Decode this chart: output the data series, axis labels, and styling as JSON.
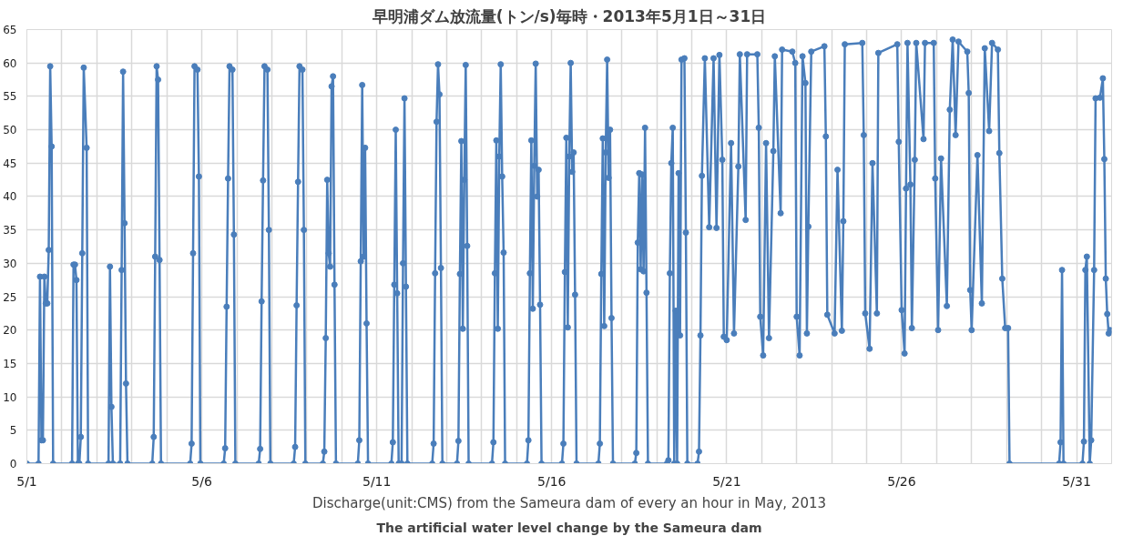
{
  "chart_data": {
    "type": "line",
    "title": "早明浦ダム放流量(トン/s)毎時・2013年5月1日～31日",
    "xlabel": "Discharge(unit:CMS) from the Sameura dam of every an hour in May, 2013",
    "annotations": [
      "The artificial water level change by the Sameura dam"
    ],
    "x": [
      "2013-05-01T00:00",
      "2013-05-01T08:00",
      "2013-05-01T09:00",
      "2013-05-01T10:00",
      "2013-05-01T11:00",
      "2013-05-01T12:00",
      "2013-05-01T13:00",
      "2013-05-01T14:00",
      "2013-05-01T15:00",
      "2013-05-01T16:00",
      "2013-05-01T17:00",
      "2013-05-01T18:00",
      "2013-05-02T07:00",
      "2013-05-02T08:00",
      "2013-05-02T09:00",
      "2013-05-02T10:00",
      "2013-05-02T11:00",
      "2013-05-02T12:00",
      "2013-05-02T13:00",
      "2013-05-02T14:00",
      "2013-05-02T15:00",
      "2013-05-02T17:00",
      "2013-05-02T18:00",
      "2013-05-03T08:00",
      "2013-05-03T09:00",
      "2013-05-03T10:00",
      "2013-05-03T11:00",
      "2013-05-03T16:00",
      "2013-05-03T17:00",
      "2013-05-03T18:00",
      "2013-05-03T19:00",
      "2013-05-03T20:00",
      "2013-05-03T21:00",
      "2013-05-04T14:00",
      "2013-05-04T15:00",
      "2013-05-04T16:00",
      "2013-05-04T17:00",
      "2013-05-04T18:00",
      "2013-05-04T19:00",
      "2013-05-04T20:00",
      "2013-05-05T16:00",
      "2013-05-05T17:00",
      "2013-05-05T18:00",
      "2013-05-05T19:00",
      "2013-05-05T21:00",
      "2013-05-05T22:00",
      "2013-05-05T23:00",
      "2013-05-06T15:00",
      "2013-05-06T16:00",
      "2013-05-06T17:00",
      "2013-05-06T18:00",
      "2013-05-06T19:00",
      "2013-05-06T21:00",
      "2013-05-06T22:00",
      "2013-05-06T23:00",
      "2013-05-07T15:00",
      "2013-05-07T16:00",
      "2013-05-07T17:00",
      "2013-05-07T18:00",
      "2013-05-07T19:00",
      "2013-05-07T21:00",
      "2013-05-07T22:00",
      "2013-05-07T23:00",
      "2013-05-08T15:00",
      "2013-05-08T16:00",
      "2013-05-08T17:00",
      "2013-05-08T18:00",
      "2013-05-08T19:00",
      "2013-05-08T21:00",
      "2013-05-08T22:00",
      "2013-05-08T23:00",
      "2013-05-09T11:00",
      "2013-05-09T12:00",
      "2013-05-09T13:00",
      "2013-05-09T14:00",
      "2013-05-09T15:00",
      "2013-05-09T16:00",
      "2013-05-09T17:00",
      "2013-05-09T18:00",
      "2013-05-09T19:00",
      "2013-05-09T20:00",
      "2013-05-10T11:00",
      "2013-05-10T12:00",
      "2013-05-10T13:00",
      "2013-05-10T14:00",
      "2013-05-10T15:00",
      "2013-05-10T16:00",
      "2013-05-10T17:00",
      "2013-05-10T18:00",
      "2013-05-11T10:00",
      "2013-05-11T11:00",
      "2013-05-11T12:00",
      "2013-05-11T13:00",
      "2013-05-11T14:00",
      "2013-05-11T15:00",
      "2013-05-11T17:00",
      "2013-05-11T18:00",
      "2013-05-11T19:00",
      "2013-05-11T20:00",
      "2013-05-11T21:00",
      "2013-05-12T14:00",
      "2013-05-12T15:00",
      "2013-05-12T16:00",
      "2013-05-12T17:00",
      "2013-05-12T18:00",
      "2013-05-12T19:00",
      "2013-05-12T20:00",
      "2013-05-12T21:00",
      "2013-05-13T07:00",
      "2013-05-13T08:00",
      "2013-05-13T09:00",
      "2013-05-13T10:00",
      "2013-05-13T11:00",
      "2013-05-13T12:00",
      "2013-05-13T13:00",
      "2013-05-13T14:00",
      "2013-05-13T15:00",
      "2013-05-14T07:00",
      "2013-05-14T08:00",
      "2013-05-14T09:00",
      "2013-05-14T10:00",
      "2013-05-14T11:00",
      "2013-05-14T12:00",
      "2013-05-14T13:00",
      "2013-05-14T14:00",
      "2013-05-14T15:00",
      "2013-05-14T16:00",
      "2013-05-15T07:00",
      "2013-05-15T08:00",
      "2013-05-15T09:00",
      "2013-05-15T10:00",
      "2013-05-15T11:00",
      "2013-05-15T12:00",
      "2013-05-15T13:00",
      "2013-05-15T14:00",
      "2013-05-15T15:00",
      "2013-05-15T16:00",
      "2013-05-15T17:00",
      "2013-05-16T07:00",
      "2013-05-16T08:00",
      "2013-05-16T09:00",
      "2013-05-16T10:00",
      "2013-05-16T11:00",
      "2013-05-16T12:00",
      "2013-05-16T13:00",
      "2013-05-16T14:00",
      "2013-05-16T15:00",
      "2013-05-16T16:00",
      "2013-05-16T17:00",
      "2013-05-17T08:00",
      "2013-05-17T09:00",
      "2013-05-17T10:00",
      "2013-05-17T11:00",
      "2013-05-17T12:00",
      "2013-05-17T13:00",
      "2013-05-17T14:00",
      "2013-05-17T15:00",
      "2013-05-17T16:00",
      "2013-05-17T17:00",
      "2013-05-17T18:00",
      "2013-05-18T09:00",
      "2013-05-18T10:00",
      "2013-05-18T11:00",
      "2013-05-18T12:00",
      "2013-05-18T13:00",
      "2013-05-18T14:00",
      "2013-05-18T15:00",
      "2013-05-18T16:00",
      "2013-05-18T17:00",
      "2013-05-18T18:00",
      "2013-05-19T07:00",
      "2013-05-19T08:00",
      "2013-05-19T09:00",
      "2013-05-19T10:00",
      "2013-05-19T11:00",
      "2013-05-19T12:00",
      "2013-05-19T13:00",
      "2013-05-19T14:00",
      "2013-05-19T15:00",
      "2013-05-19T16:00",
      "2013-05-19T17:00",
      "2013-05-19T19:00",
      "2013-05-19T20:00",
      "2013-05-19T21:00",
      "2013-05-20T04:00",
      "2013-05-20T05:00",
      "2013-05-20T06:00",
      "2013-05-20T07:00",
      "2013-05-20T09:00",
      "2013-05-20T12:00",
      "2013-05-20T15:00",
      "2013-05-20T17:00",
      "2013-05-20T19:00",
      "2013-05-20T21:00",
      "2013-05-20T22:00",
      "2013-05-21T00:00",
      "2013-05-21T03:00",
      "2013-05-21T05:00",
      "2013-05-21T08:00",
      "2013-05-21T09:00",
      "2013-05-21T13:00",
      "2013-05-21T14:00",
      "2013-05-21T21:00",
      "2013-05-21T22:00",
      "2013-05-21T23:00",
      "2013-05-22T01:00",
      "2013-05-22T03:00",
      "2013-05-22T05:00",
      "2013-05-22T08:00",
      "2013-05-22T09:00",
      "2013-05-22T13:00",
      "2013-05-22T14:00",
      "2013-05-22T21:00",
      "2013-05-22T23:00",
      "2013-05-23T00:00",
      "2013-05-23T02:00",
      "2013-05-23T04:00",
      "2013-05-23T06:00",
      "2013-05-23T07:00",
      "2013-05-23T08:00",
      "2013-05-23T10:00",
      "2013-05-23T19:00",
      "2013-05-23T20:00",
      "2013-05-23T21:00",
      "2013-05-24T02:00",
      "2013-05-24T04:00",
      "2013-05-24T07:00",
      "2013-05-24T08:00",
      "2013-05-24T09:00",
      "2013-05-24T21:00",
      "2013-05-24T22:00",
      "2013-05-24T23:00",
      "2013-05-25T02:00",
      "2013-05-25T04:00",
      "2013-05-25T07:00",
      "2013-05-25T08:00",
      "2013-05-25T21:00",
      "2013-05-25T22:00",
      "2013-05-26T00:00",
      "2013-05-26T02:00",
      "2013-05-26T03:00",
      "2013-05-26T04:00",
      "2013-05-26T06:00",
      "2013-05-26T07:00",
      "2013-05-26T09:00",
      "2013-05-26T10:00",
      "2013-05-26T15:00",
      "2013-05-26T16:00",
      "2013-05-26T22:00",
      "2013-05-26T23:00",
      "2013-05-27T01:00",
      "2013-05-27T03:00",
      "2013-05-27T07:00",
      "2013-05-27T09:00",
      "2013-05-27T11:00",
      "2013-05-27T13:00",
      "2013-05-27T15:00",
      "2013-05-27T21:00",
      "2013-05-27T22:00",
      "2013-05-27T23:00",
      "2013-05-28T00:00",
      "2013-05-28T04:00",
      "2013-05-28T07:00",
      "2013-05-28T09:00",
      "2013-05-28T12:00",
      "2013-05-28T14:00",
      "2013-05-28T18:00",
      "2013-05-28T19:00",
      "2013-05-28T21:00",
      "2013-05-28T23:00",
      "2013-05-29T01:00",
      "2013-05-29T02:00",
      "2013-05-30T12:00",
      "2013-05-30T13:00",
      "2013-05-30T14:00",
      "2013-05-30T15:00",
      "2013-05-31T04:00",
      "2013-05-31T05:00",
      "2013-05-31T06:00",
      "2013-05-31T07:00",
      "2013-05-31T09:00",
      "2013-05-31T10:00",
      "2013-05-31T12:00",
      "2013-05-31T13:00",
      "2013-05-31T16:00",
      "2013-05-31T18:00",
      "2013-05-31T19:00",
      "2013-05-31T20:00",
      "2013-05-31T21:00",
      "2013-05-31T22:00",
      "2013-05-31T23:00"
    ],
    "series": [
      {
        "color": "#4a7ebb",
        "values": [
          0,
          0,
          28,
          3.5,
          3.5,
          28,
          24,
          24,
          32,
          59.5,
          47.5,
          0,
          0,
          29.8,
          29.8,
          27.5,
          0,
          0,
          4,
          31.5,
          59.3,
          47.3,
          0,
          0,
          29.5,
          8.5,
          0,
          0,
          29,
          58.7,
          36,
          12,
          0,
          0,
          4,
          31,
          59.5,
          57.5,
          30.5,
          0,
          0,
          3,
          31.5,
          59.5,
          59,
          43,
          0,
          0,
          2.3,
          23.5,
          42.7,
          59.5,
          59,
          34.3,
          0,
          0,
          2.2,
          24.3,
          42.4,
          59.5,
          59,
          35,
          0,
          0,
          2.5,
          23.7,
          42.2,
          59.5,
          59,
          35,
          0,
          0,
          1.8,
          18.8,
          42.5,
          31.5,
          29.5,
          56.5,
          58,
          26.8,
          0,
          0,
          3.5,
          30.3,
          56.7,
          31,
          47.3,
          21,
          0,
          0,
          3.2,
          26.8,
          50,
          25.5,
          0,
          0,
          30,
          54.7,
          26.5,
          0,
          0,
          3,
          28.5,
          51.2,
          59.8,
          55.3,
          29.3,
          0,
          0,
          3.4,
          28.4,
          48.3,
          20.2,
          42.5,
          59.7,
          32.6,
          0,
          0,
          3.2,
          28.5,
          48.4,
          20.2,
          46,
          59.8,
          43,
          31.6,
          0,
          0,
          3.5,
          28.5,
          48.4,
          23.2,
          44.6,
          59.9,
          40,
          44,
          23.8,
          0,
          0,
          3,
          28.7,
          48.8,
          20.4,
          46,
          60,
          43.7,
          46.6,
          25.3,
          0,
          0,
          3,
          28.4,
          48.7,
          20.6,
          46.6,
          60.5,
          42.8,
          50,
          21.8,
          0,
          0,
          1.6,
          33.1,
          43.5,
          29.1,
          43.3,
          28.8,
          50.3,
          25.6,
          0,
          0,
          0.5,
          28.5,
          45,
          50.3,
          0,
          22.9,
          0,
          43.5,
          19.2,
          60.5,
          60.7,
          34.6,
          0,
          0,
          1.8,
          19.2,
          43.1,
          60.7,
          35.4,
          60.7,
          35.3,
          61.2,
          45.5,
          19,
          18.5,
          48,
          19.5,
          44.5,
          61.3,
          36.5,
          61.3,
          61.3,
          50.3,
          22,
          16.2,
          48,
          18.8,
          46.8,
          61,
          37.5,
          62,
          61.7,
          60,
          22,
          16.2,
          61,
          57,
          19.5,
          35.5,
          61.7,
          62.5,
          49,
          22.3,
          19.5,
          44,
          19.9,
          36.3,
          62.8,
          63,
          49.2,
          22.5,
          17.2,
          45,
          22.5,
          61.5,
          62.8,
          48.2,
          23,
          16.5,
          41.2,
          63,
          41.8,
          20.3,
          45.5,
          63,
          48.6,
          63,
          63,
          42.7,
          20,
          45.7,
          23.6,
          53,
          63.5,
          49.2,
          63.2,
          61.7,
          55.5,
          26,
          20,
          46.2,
          24,
          62.2,
          49.8,
          63,
          62,
          46.5,
          27.7,
          20.3,
          20.3,
          0,
          0,
          3.2,
          29,
          0,
          0,
          3.3,
          29,
          31,
          0,
          3.5,
          29,
          54.7,
          54.8,
          57.7,
          45.6,
          27.7,
          22.4,
          19.5,
          20
        ]
      }
    ],
    "xlim": [
      "2013-05-01",
      "2013-06-01"
    ],
    "xticks": [
      {
        "value": "2013-05-01",
        "label": "5/1"
      },
      {
        "value": "2013-05-02",
        "label": null
      },
      {
        "value": "2013-05-03",
        "label": null
      },
      {
        "value": "2013-05-04",
        "label": null
      },
      {
        "value": "2013-05-05",
        "label": null
      },
      {
        "value": "2013-05-06",
        "label": "5/6"
      },
      {
        "value": "2013-05-07",
        "label": null
      },
      {
        "value": "2013-05-08",
        "label": null
      },
      {
        "value": "2013-05-09",
        "label": null
      },
      {
        "value": "2013-05-10",
        "label": null
      },
      {
        "value": "2013-05-11",
        "label": "5/11"
      },
      {
        "value": "2013-05-12",
        "label": null
      },
      {
        "value": "2013-05-13",
        "label": null
      },
      {
        "value": "2013-05-14",
        "label": null
      },
      {
        "value": "2013-05-15",
        "label": null
      },
      {
        "value": "2013-05-16",
        "label": "5/16"
      },
      {
        "value": "2013-05-17",
        "label": null
      },
      {
        "value": "2013-05-18",
        "label": null
      },
      {
        "value": "2013-05-19",
        "label": null
      },
      {
        "value": "2013-05-20",
        "label": null
      },
      {
        "value": "2013-05-21",
        "label": "5/21"
      },
      {
        "value": "2013-05-22",
        "label": null
      },
      {
        "value": "2013-05-23",
        "label": null
      },
      {
        "value": "2013-05-24",
        "label": null
      },
      {
        "value": "2013-05-25",
        "label": null
      },
      {
        "value": "2013-05-26",
        "label": "5/26"
      },
      {
        "value": "2013-05-27",
        "label": null
      },
      {
        "value": "2013-05-28",
        "label": null
      },
      {
        "value": "2013-05-29",
        "label": null
      },
      {
        "value": "2013-05-30",
        "label": null
      },
      {
        "value": "2013-05-31",
        "label": "5/31"
      }
    ],
    "ylim": [
      0,
      65
    ],
    "yticks": [
      0,
      5,
      10,
      15,
      20,
      25,
      30,
      35,
      40,
      45,
      50,
      55,
      60,
      65
    ],
    "grid": true,
    "marker": "circle",
    "line_style": "solid"
  }
}
